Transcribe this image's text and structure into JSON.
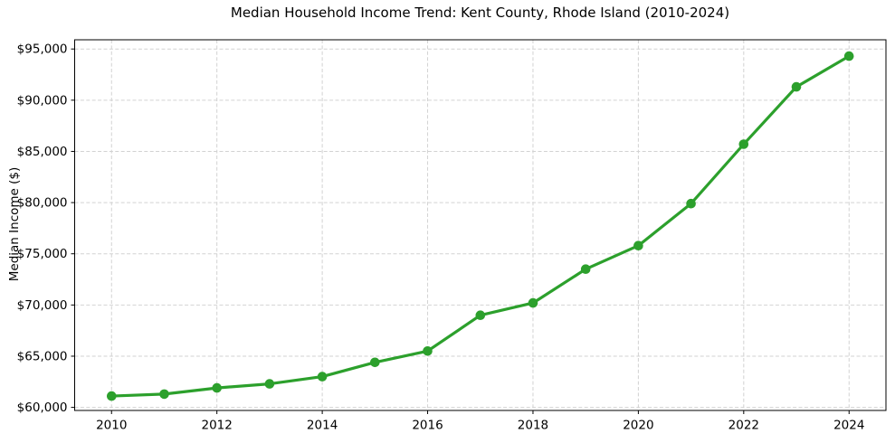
{
  "chart_data": {
    "type": "line",
    "title": "Median Household Income Trend: Kent County, Rhode Island (2010-2024)",
    "xlabel": "",
    "ylabel": "Median Income ($)",
    "x": [
      2010,
      2011,
      2012,
      2013,
      2014,
      2015,
      2016,
      2017,
      2018,
      2019,
      2020,
      2021,
      2022,
      2023,
      2024
    ],
    "values": [
      61100,
      61300,
      61900,
      62300,
      63000,
      64400,
      65500,
      69000,
      70200,
      73500,
      75800,
      79900,
      85700,
      91300,
      94300
    ],
    "x_tick_values": [
      2010,
      2012,
      2014,
      2016,
      2018,
      2020,
      2022,
      2024
    ],
    "x_tick_labels": [
      "2010",
      "2012",
      "2014",
      "2016",
      "2018",
      "2020",
      "2022",
      "2024"
    ],
    "y_tick_values": [
      60000,
      65000,
      70000,
      75000,
      80000,
      85000,
      90000,
      95000
    ],
    "y_tick_labels": [
      "$60,000",
      "$65,000",
      "$70,000",
      "$75,000",
      "$80,000",
      "$85,000",
      "$90,000",
      "$95,000"
    ],
    "xlim": [
      2009.3,
      2024.7
    ],
    "ylim": [
      59700,
      95900
    ],
    "grid": true,
    "grid_line_style": "dashed",
    "legend_position": "none",
    "marker": "circle",
    "colors": {
      "line": "#2ca02c",
      "marker": "#2ca02c",
      "grid": "#d2d2d2",
      "axis": "#000000",
      "text": "#000000",
      "background": "#ffffff"
    }
  }
}
